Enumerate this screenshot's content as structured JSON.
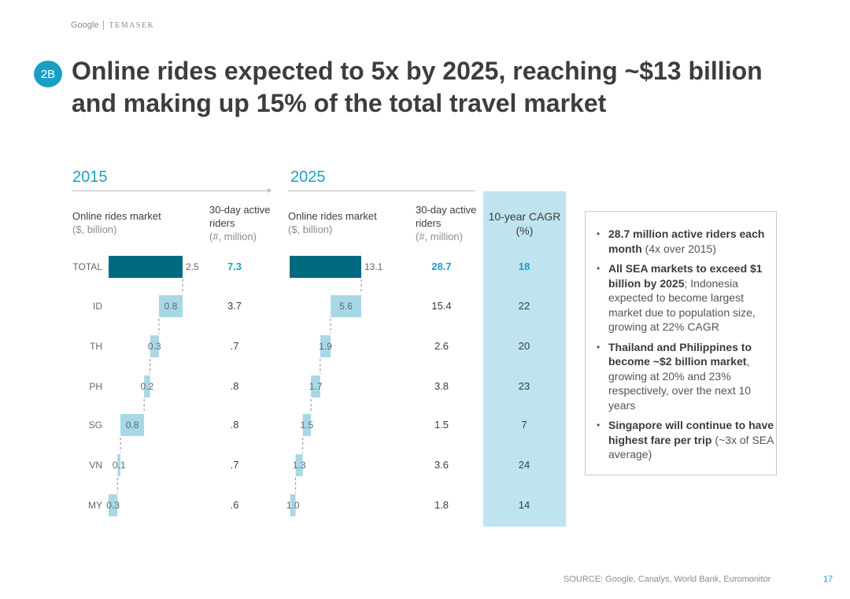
{
  "logo": {
    "google": "Google",
    "temasek": "TEMASEK"
  },
  "badge": "2B",
  "title": "Online rides expected to 5x by 2025, reaching ~$13 billion and making up 15% of the total travel market",
  "colors": {
    "accent": "#1a9fc4",
    "total_bar": "#006a80",
    "light_bar": "#a8d8e8",
    "cagr_bg": "#bfe4ef"
  },
  "panel_2015": {
    "year": "2015",
    "market_header": "Online rides market",
    "market_unit": "($, billion)",
    "riders_header": "30-day active riders",
    "riders_unit": "(#, million)"
  },
  "panel_2025": {
    "year": "2025",
    "market_header": "Online rides market",
    "market_unit": "($, billion)",
    "riders_header": "30-day active riders",
    "riders_unit": "(#, million)"
  },
  "cagr_header": "10-year CAGR (%)",
  "chart_data": [
    {
      "type": "bar",
      "subtype": "waterfall",
      "title": "2015",
      "categories": [
        "TOTAL",
        "ID",
        "TH",
        "PH",
        "SG",
        "VN",
        "MY"
      ],
      "values": [
        2.5,
        0.8,
        0.3,
        0.2,
        0.8,
        0.1,
        0.3
      ],
      "labels": [
        "2.5",
        "0.8",
        "0.3",
        "0.2",
        "0.8",
        "0.1",
        "0.3"
      ],
      "riders": [
        "7.3",
        "3.7",
        ".7",
        ".8",
        ".8",
        ".7",
        ".6"
      ]
    },
    {
      "type": "bar",
      "subtype": "waterfall",
      "title": "2025",
      "categories": [
        "TOTAL",
        "ID",
        "TH",
        "PH",
        "SG",
        "VN",
        "MY"
      ],
      "values": [
        13.1,
        5.6,
        1.9,
        1.7,
        1.5,
        1.3,
        1.0
      ],
      "labels": [
        "13.1",
        "5.6",
        "1.9",
        "1.7",
        "1.5",
        "1.3",
        "1.0"
      ],
      "riders": [
        "28.7",
        "15.4",
        "2.6",
        "3.8",
        "1.5",
        "3.6",
        "1.8"
      ],
      "cagr": [
        "18",
        "22",
        "20",
        "23",
        "7",
        "24",
        "14"
      ]
    }
  ],
  "insights": [
    {
      "bold": "28.7 million active riders each month",
      "text": " (4x over 2015)"
    },
    {
      "bold": "All SEA markets to exceed $1 billion by 2025",
      "text": "; Indonesia expected to become largest market due to population size, growing at 22% CAGR"
    },
    {
      "bold": "Thailand and Philippines to become ~$2 billion market",
      "text": ", growing at 20% and 23% respectively, over the next 10 years"
    },
    {
      "bold": "Singapore will continue to have highest fare per trip",
      "text": " (~3x of SEA average)"
    }
  ],
  "source": "SOURCE: Google, Canalys, World Bank, Euromonitor",
  "page_number": "17"
}
